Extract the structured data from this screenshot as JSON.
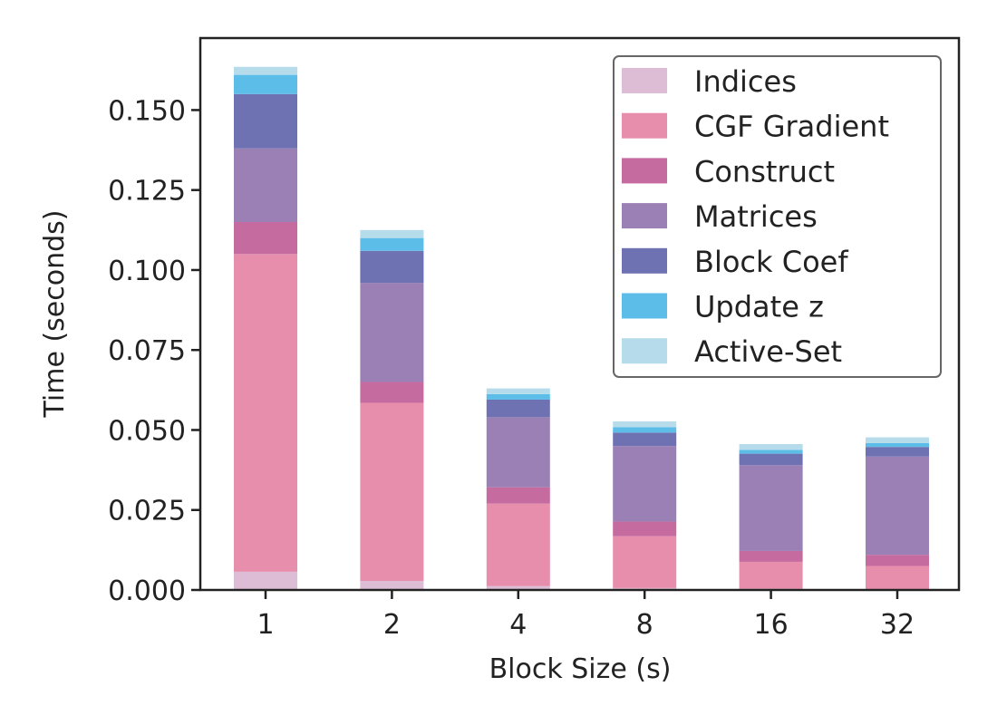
{
  "chart_data": {
    "type": "bar",
    "stacked": true,
    "title": "",
    "xlabel": "Block Size (s)",
    "ylabel": "Time (seconds)",
    "categories": [
      "1",
      "2",
      "4",
      "8",
      "16",
      "32"
    ],
    "ylim": [
      0,
      0.1725
    ],
    "yticks": [
      "0.000",
      "0.025",
      "0.050",
      "0.075",
      "0.100",
      "0.125",
      "0.150"
    ],
    "legend_position": "top-right",
    "grid": false,
    "series": [
      {
        "name": "Indices",
        "color": "#dcbdd5",
        "values": [
          0.0057,
          0.0028,
          0.0012,
          0.0006,
          0.0004,
          0.0003
        ]
      },
      {
        "name": "CGF Gradient",
        "color": "#e68eac",
        "values": [
          0.0993,
          0.0557,
          0.0258,
          0.0162,
          0.0084,
          0.0072
        ]
      },
      {
        "name": "Construct",
        "color": "#c56ba0",
        "values": [
          0.01,
          0.0065,
          0.0051,
          0.0046,
          0.0034,
          0.0035
        ]
      },
      {
        "name": "Matrices",
        "color": "#9a80b5",
        "values": [
          0.023,
          0.031,
          0.0219,
          0.0236,
          0.0268,
          0.0307
        ]
      },
      {
        "name": "Block Coef",
        "color": "#6f72b2",
        "values": [
          0.017,
          0.01,
          0.0055,
          0.0042,
          0.0036,
          0.003
        ]
      },
      {
        "name": "Update z",
        "color": "#5cbde8",
        "values": [
          0.006,
          0.004,
          0.0017,
          0.0017,
          0.0012,
          0.0012
        ]
      },
      {
        "name": "Active-Set",
        "color": "#b6dcec",
        "values": [
          0.0025,
          0.0025,
          0.0018,
          0.0018,
          0.0018,
          0.0018
        ]
      }
    ]
  }
}
